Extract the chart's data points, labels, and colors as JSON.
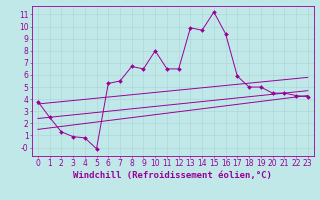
{
  "xlabel": "Windchill (Refroidissement éolien,°C)",
  "bg_color": "#c0e8e8",
  "line_color": "#990099",
  "grid_color": "#b0d8d8",
  "xlim": [
    -0.5,
    23.5
  ],
  "ylim": [
    -0.7,
    11.7
  ],
  "xticks": [
    0,
    1,
    2,
    3,
    4,
    5,
    6,
    7,
    8,
    9,
    10,
    11,
    12,
    13,
    14,
    15,
    16,
    17,
    18,
    19,
    20,
    21,
    22,
    23
  ],
  "yticks": [
    0,
    1,
    2,
    3,
    4,
    5,
    6,
    7,
    8,
    9,
    10,
    11
  ],
  "ytick_labels": [
    "-0",
    "1",
    "2",
    "3",
    "4",
    "5",
    "6",
    "7",
    "8",
    "9",
    "10",
    "11"
  ],
  "series1_x": [
    0,
    1,
    2,
    3,
    4,
    5,
    6,
    7,
    8,
    9,
    10,
    11,
    12,
    13,
    14,
    15,
    16,
    17,
    18,
    19,
    20,
    21,
    22,
    23
  ],
  "series1_y": [
    3.8,
    2.5,
    1.3,
    0.9,
    0.8,
    -0.1,
    5.3,
    5.5,
    6.7,
    6.5,
    8.0,
    6.5,
    6.5,
    9.9,
    9.7,
    11.2,
    9.4,
    5.9,
    5.0,
    5.0,
    4.5,
    4.5,
    4.3,
    4.2
  ],
  "series2_x": [
    0,
    23
  ],
  "series2_y": [
    3.6,
    5.8
  ],
  "series3_x": [
    0,
    23
  ],
  "series3_y": [
    2.4,
    4.7
  ],
  "series4_x": [
    0,
    23
  ],
  "series4_y": [
    1.5,
    4.3
  ],
  "xlabel_fontsize": 6.5,
  "tick_fontsize": 5.5,
  "marker": "D",
  "markersize": 2.0
}
